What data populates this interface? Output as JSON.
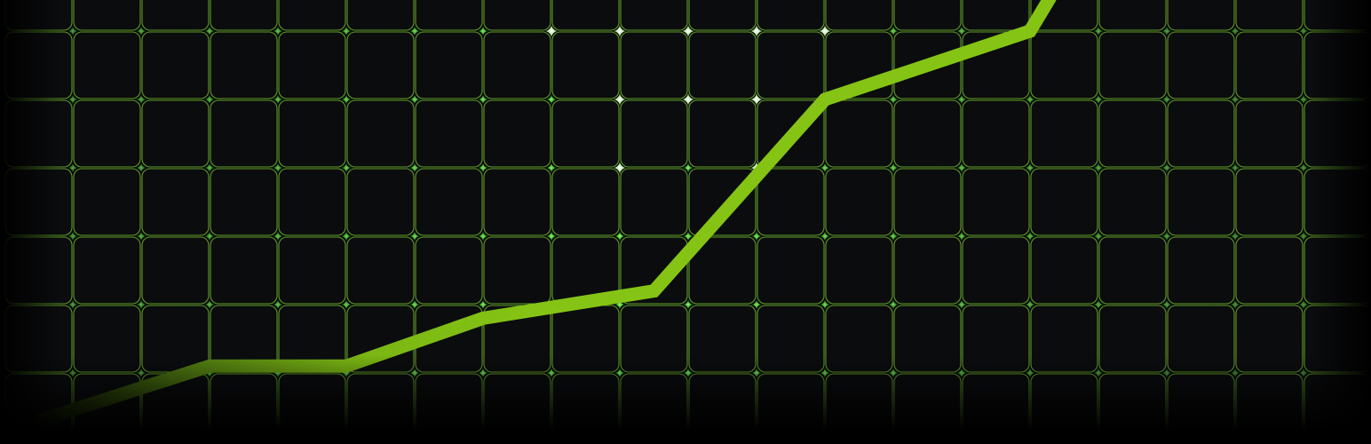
{
  "chart_data": {
    "type": "line",
    "title": "",
    "xlabel": "",
    "ylabel": "",
    "grid": true,
    "x": [
      0.5,
      3,
      5,
      7,
      9.5,
      12,
      15
    ],
    "series": [
      {
        "values": [
          0.3,
          1.1,
          1.1,
          1.8,
          2.2,
          5.0,
          6.0
        ]
      }
    ],
    "xlim": [
      0,
      19.5
    ],
    "ylim": [
      0,
      6.2
    ]
  },
  "colors": {
    "background": "#000000",
    "panel": "#0b0c0e",
    "grid_line": "#6fb52d",
    "glow_green": "#4fe33a",
    "glow_white": "#f4fff0",
    "series_line": "#85c414"
  }
}
